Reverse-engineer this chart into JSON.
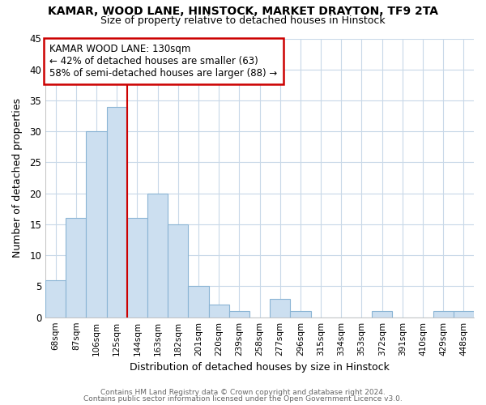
{
  "title": "KAMAR, WOOD LANE, HINSTOCK, MARKET DRAYTON, TF9 2TA",
  "subtitle": "Size of property relative to detached houses in Hinstock",
  "xlabel": "Distribution of detached houses by size in Hinstock",
  "ylabel": "Number of detached properties",
  "categories": [
    "68sqm",
    "87sqm",
    "106sqm",
    "125sqm",
    "144sqm",
    "163sqm",
    "182sqm",
    "201sqm",
    "220sqm",
    "239sqm",
    "258sqm",
    "277sqm",
    "296sqm",
    "315sqm",
    "334sqm",
    "353sqm",
    "372sqm",
    "391sqm",
    "410sqm",
    "429sqm",
    "448sqm"
  ],
  "values": [
    6,
    16,
    30,
    34,
    16,
    20,
    15,
    5,
    2,
    1,
    0,
    3,
    1,
    0,
    0,
    0,
    1,
    0,
    0,
    1,
    1
  ],
  "bar_color": "#ccdff0",
  "bar_edge_color": "#8ab4d4",
  "vline_x": 3.5,
  "vline_color": "#cc0000",
  "annotation_text": "KAMAR WOOD LANE: 130sqm\n← 42% of detached houses are smaller (63)\n58% of semi-detached houses are larger (88) →",
  "annotation_box_color": "#ffffff",
  "annotation_box_edge_color": "#cc0000",
  "ylim": [
    0,
    45
  ],
  "yticks": [
    0,
    5,
    10,
    15,
    20,
    25,
    30,
    35,
    40,
    45
  ],
  "footer_line1": "Contains HM Land Registry data © Crown copyright and database right 2024.",
  "footer_line2": "Contains public sector information licensed under the Open Government Licence v3.0.",
  "background_color": "#ffffff",
  "plot_bg_color": "#ffffff",
  "grid_color": "#c8d8e8"
}
